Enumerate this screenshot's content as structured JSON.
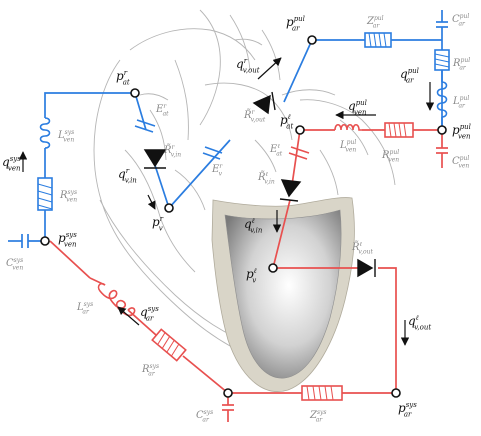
{
  "colors": {
    "pulmonary": "#2b7de0",
    "systemic": "#e8504f",
    "anatomy": "#b5b5b5",
    "ventricle_wall": "#d9d5c8",
    "text": "#111111",
    "secondary_text": "#8a8a8a"
  },
  "labels": {
    "p_ar_pul": {
      "sym": "p",
      "sup": "pul",
      "sub": "ar"
    },
    "Z_ar_pul": {
      "sym": "Z",
      "sup": "pul",
      "sub": "ar"
    },
    "C_ar_pul": {
      "sym": "C",
      "sup": "pul",
      "sub": "ar"
    },
    "R_ar_pul": {
      "sym": "R",
      "sup": "pul",
      "sub": "ar"
    },
    "q_ar_pul": {
      "sym": "q",
      "sup": "pul",
      "sub": "ar"
    },
    "L_ar_pul": {
      "sym": "L",
      "sup": "pul",
      "sub": "ar"
    },
    "p_ven_pul": {
      "sym": "p",
      "sup": "pul",
      "sub": "ven"
    },
    "C_ven_pul": {
      "sym": "C",
      "sup": "pul",
      "sub": "ven"
    },
    "R_ven_pul": {
      "sym": "R",
      "sup": "pul",
      "sub": "ven"
    },
    "L_ven_pul": {
      "sym": "L",
      "sup": "pul",
      "sub": "ven"
    },
    "q_ven_pul": {
      "sym": "q",
      "sup": "pul",
      "sub": "ven"
    },
    "p_at_l": {
      "sym": "p",
      "sup": "ℓ",
      "sub": "at"
    },
    "E_at_l": {
      "sym": "E",
      "sup": "ℓ",
      "sub": "at"
    },
    "R_v_in_l": {
      "sym": "R̃",
      "sup": "ℓ",
      "sub": "v,in"
    },
    "q_v_in_l": {
      "sym": "q",
      "sup": "ℓ",
      "sub": "v,in"
    },
    "p_v_l": {
      "sym": "p",
      "sup": "ℓ",
      "sub": "v"
    },
    "R_v_out_l": {
      "sym": "R̃",
      "sup": "ℓ",
      "sub": "v,out"
    },
    "q_v_out_l": {
      "sym": "q",
      "sup": "ℓ",
      "sub": "v,out"
    },
    "p_ar_sys": {
      "sym": "p",
      "sup": "sys",
      "sub": "ar"
    },
    "Z_ar_sys": {
      "sym": "Z",
      "sup": "sys",
      "sub": "ar"
    },
    "C_ar_sys": {
      "sym": "C",
      "sup": "sys",
      "sub": "ar"
    },
    "R_ar_sys": {
      "sym": "R",
      "sup": "sys",
      "sub": "ar"
    },
    "q_ar_sys": {
      "sym": "q",
      "sup": "sys",
      "sub": "ar"
    },
    "L_ar_sys": {
      "sym": "L",
      "sup": "sys",
      "sub": "ar"
    },
    "p_ven_sys": {
      "sym": "p",
      "sup": "sys",
      "sub": "ven"
    },
    "C_ven_sys": {
      "sym": "C",
      "sup": "sys",
      "sub": "ven"
    },
    "R_ven_sys": {
      "sym": "R",
      "sup": "sys",
      "sub": "ven"
    },
    "L_ven_sys": {
      "sym": "L",
      "sup": "sys",
      "sub": "ven"
    },
    "q_ven_sys": {
      "sym": "q",
      "sup": "sys",
      "sub": "ven"
    },
    "p_at_r": {
      "sym": "p",
      "sup": "r",
      "sub": "at"
    },
    "E_at_r": {
      "sym": "E",
      "sup": "r",
      "sub": "at"
    },
    "R_v_in_r": {
      "sym": "R̃",
      "sup": "r",
      "sub": "v,in"
    },
    "q_v_in_r": {
      "sym": "q",
      "sup": "r",
      "sub": "v,in"
    },
    "p_v_r": {
      "sym": "p",
      "sup": "r",
      "sub": "v"
    },
    "E_v_r": {
      "sym": "E",
      "sup": "r",
      "sub": "v"
    },
    "R_v_out_r": {
      "sym": "R̃",
      "sup": "r",
      "sub": "v,out"
    },
    "q_v_out_r": {
      "sym": "q",
      "sup": "r",
      "sub": "v,out"
    }
  }
}
